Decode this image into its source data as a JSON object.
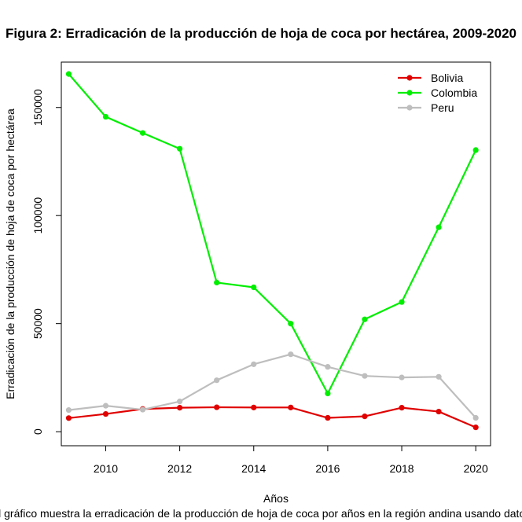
{
  "chart_data": {
    "type": "line",
    "title": "Figura 2: Erradicación de la producción de hoja de coca por hectárea, 2009-2020",
    "xlabel": "Años",
    "ylabel": "Erradicación de la producción de hoja de coca por hectárea",
    "caption": "El gráfico muestra la erradicación de la producción de hoja de coca por años en la región andina usando datos",
    "x": [
      2009,
      2010,
      2011,
      2012,
      2013,
      2014,
      2015,
      2016,
      2017,
      2018,
      2019,
      2020
    ],
    "xlim": [
      2008.8,
      2020.4
    ],
    "ylim": [
      -6500,
      171000
    ],
    "xticks": [
      2010,
      2012,
      2014,
      2016,
      2018,
      2020
    ],
    "yticks": [
      0,
      50000,
      100000,
      150000
    ],
    "legend_position": "top-right",
    "grid": false,
    "series": [
      {
        "name": "Bolivia",
        "color": "#e00000",
        "values": [
          6300,
          8200,
          10500,
          11100,
          11300,
          11200,
          11200,
          6400,
          7100,
          11100,
          9300,
          2000
        ]
      },
      {
        "name": "Colombia",
        "color": "#00ee00",
        "values": [
          165500,
          145700,
          138200,
          130900,
          69000,
          66800,
          50000,
          17700,
          52000,
          60000,
          94600,
          130300
        ]
      },
      {
        "name": "Peru",
        "color": "#bebebe",
        "values": [
          10000,
          12000,
          10200,
          14000,
          23800,
          31200,
          35800,
          30000,
          25800,
          25100,
          25400,
          6400
        ]
      }
    ]
  }
}
